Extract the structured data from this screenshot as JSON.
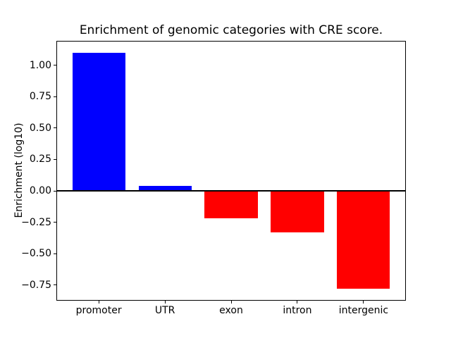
{
  "figure": {
    "background": "#ffffff"
  },
  "chart_data": {
    "type": "bar",
    "title": "Enrichment of genomic categories with CRE score.",
    "xlabel": "",
    "ylabel": "Enrichment (log10)",
    "categories": [
      "promoter",
      "UTR",
      "exon",
      "intron",
      "intergenic"
    ],
    "values": [
      1.1,
      0.04,
      -0.22,
      -0.33,
      -0.78
    ],
    "bar_colors": [
      "#0000ff",
      "#0000ff",
      "#ff0000",
      "#ff0000",
      "#ff0000"
    ],
    "positive_color": "#0000ff",
    "negative_color": "#ff0000",
    "bar_width": 0.8,
    "xlim": [
      -0.64,
      4.64
    ],
    "ylim": [
      -0.874,
      1.194
    ],
    "yticks": [
      1.0,
      0.75,
      0.5,
      0.25,
      0.0,
      -0.25,
      -0.5,
      -0.75
    ],
    "ytick_labels": [
      "1.00",
      "0.75",
      "0.50",
      "0.25",
      "0.00",
      "−0.25",
      "−0.50",
      "−0.75"
    ],
    "grid": false,
    "legend": null,
    "zero_line": true,
    "zero_line_color": "#000000",
    "axis_color": "#000000",
    "text_color": "#000000"
  }
}
